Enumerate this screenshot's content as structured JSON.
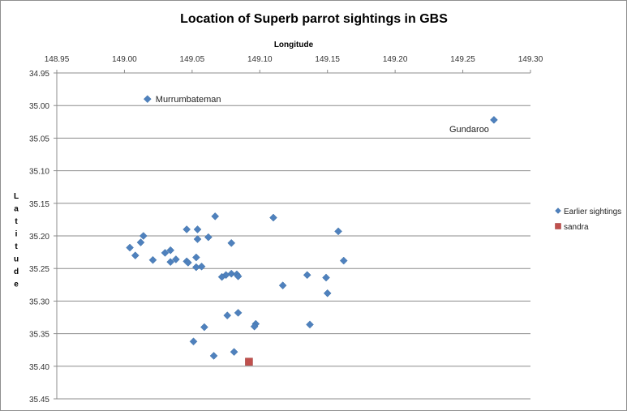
{
  "chart_data": {
    "type": "scatter",
    "title": "Location of Superb parrot sightings in GBS",
    "xlabel": "Longitude",
    "ylabel": "Latitude",
    "xlim": [
      148.95,
      149.3
    ],
    "ylim": [
      34.95,
      35.45
    ],
    "x_ticks": [
      "148.95",
      "149.00",
      "149.05",
      "149.10",
      "149.15",
      "149.20",
      "149.25",
      "149.30"
    ],
    "y_ticks": [
      "34.95",
      "35.00",
      "35.05",
      "35.10",
      "35.15",
      "35.20",
      "35.25",
      "35.30",
      "35.35",
      "35.40",
      "35.45"
    ],
    "x_axis_position": "top",
    "y_axis_reversed": true,
    "grid": "horizontal",
    "legend_position": "right",
    "colors": {
      "earlier": "#4F81BD",
      "sandra": "#C0504D"
    },
    "annotations": [
      {
        "text": "Murrumbateman",
        "x": 149.017,
        "y": 34.99
      },
      {
        "text": "Gundaroo",
        "x": 149.273,
        "y": 35.022
      }
    ],
    "series": [
      {
        "name": "Earlier sightings",
        "marker": "diamond",
        "points": [
          [
            149.017,
            34.99
          ],
          [
            149.273,
            35.022
          ],
          [
            149.067,
            35.17
          ],
          [
            149.11,
            35.172
          ],
          [
            149.046,
            35.19
          ],
          [
            149.054,
            35.19
          ],
          [
            149.158,
            35.193
          ],
          [
            149.014,
            35.2
          ],
          [
            149.062,
            35.202
          ],
          [
            149.054,
            35.205
          ],
          [
            149.012,
            35.21
          ],
          [
            149.079,
            35.211
          ],
          [
            149.004,
            35.218
          ],
          [
            149.034,
            35.222
          ],
          [
            149.03,
            35.226
          ],
          [
            149.008,
            35.23
          ],
          [
            149.053,
            35.233
          ],
          [
            149.021,
            35.237
          ],
          [
            149.038,
            35.236
          ],
          [
            149.034,
            35.24
          ],
          [
            149.046,
            35.239
          ],
          [
            149.047,
            35.241
          ],
          [
            149.162,
            35.238
          ],
          [
            149.057,
            35.247
          ],
          [
            149.053,
            35.248
          ],
          [
            149.079,
            35.258
          ],
          [
            149.083,
            35.259
          ],
          [
            149.075,
            35.26
          ],
          [
            149.072,
            35.263
          ],
          [
            149.084,
            35.262
          ],
          [
            149.135,
            35.26
          ],
          [
            149.149,
            35.264
          ],
          [
            149.117,
            35.276
          ],
          [
            149.15,
            35.288
          ],
          [
            149.084,
            35.318
          ],
          [
            149.076,
            35.322
          ],
          [
            149.097,
            35.335
          ],
          [
            149.096,
            35.339
          ],
          [
            149.137,
            35.336
          ],
          [
            149.059,
            35.34
          ],
          [
            149.051,
            35.362
          ],
          [
            149.081,
            35.378
          ],
          [
            149.066,
            35.384
          ]
        ]
      },
      {
        "name": "sandra",
        "marker": "square",
        "points": [
          [
            149.092,
            35.393
          ]
        ]
      }
    ]
  }
}
